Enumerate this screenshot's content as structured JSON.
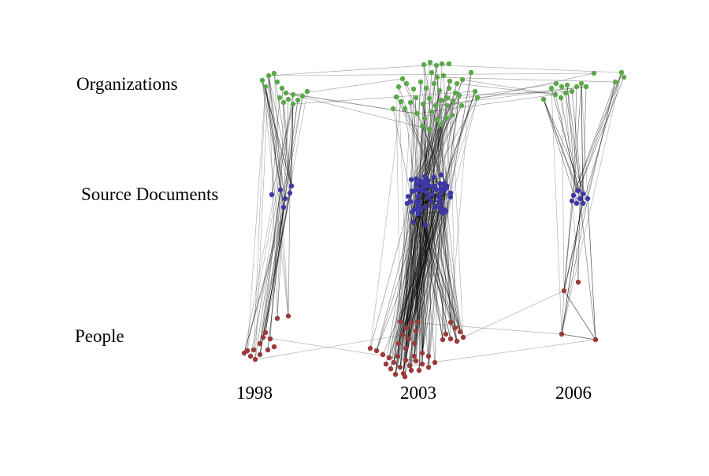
{
  "row_labels": {
    "organizations": "Organizations",
    "documents": "Source Documents",
    "people": "People"
  },
  "years": [
    "1998",
    "2003",
    "2006"
  ],
  "colors": {
    "organizations": "#5ba84a",
    "documents": "#3e37a8",
    "people": "#9b3a3a",
    "edge": "#000000"
  }
}
